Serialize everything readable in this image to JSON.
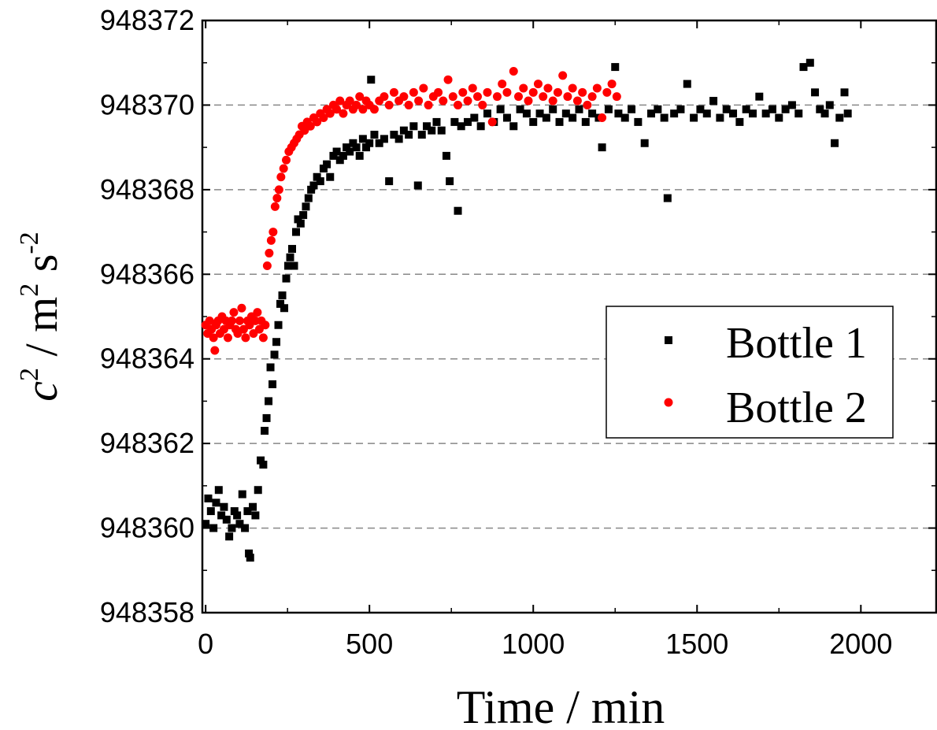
{
  "chart_data": {
    "type": "scatter",
    "xlabel": "Time / min",
    "ylabel": {
      "base": "c",
      "sup": "2",
      "mid": " / m",
      "sup2": "2",
      "mid2": " s",
      "sup3": "-2"
    },
    "xlim": [
      -10,
      2230
    ],
    "ylim": [
      948358,
      948372
    ],
    "xticks": [
      0,
      500,
      1000,
      1500,
      2000
    ],
    "yticks": [
      948358,
      948360,
      948362,
      948364,
      948366,
      948368,
      948370,
      948372
    ],
    "grid": {
      "y": true,
      "x": false,
      "style": "dashed"
    },
    "legend": {
      "placement": "right",
      "entries": [
        "Bottle 1",
        "Bottle 2"
      ]
    },
    "series": [
      {
        "name": "Bottle 1",
        "color": "#000000",
        "marker": "square",
        "points": [
          [
            0,
            948360.1
          ],
          [
            8,
            948360.7
          ],
          [
            16,
            948360.4
          ],
          [
            24,
            948360.0
          ],
          [
            32,
            948360.6
          ],
          [
            40,
            948360.9
          ],
          [
            48,
            948360.3
          ],
          [
            56,
            948360.5
          ],
          [
            64,
            948360.2
          ],
          [
            72,
            948359.8
          ],
          [
            80,
            948360.0
          ],
          [
            88,
            948360.4
          ],
          [
            96,
            948360.3
          ],
          [
            104,
            948360.1
          ],
          [
            112,
            948360.8
          ],
          [
            120,
            948360.0
          ],
          [
            128,
            948360.4
          ],
          [
            132,
            948359.4
          ],
          [
            136,
            948359.3
          ],
          [
            144,
            948360.5
          ],
          [
            152,
            948360.3
          ],
          [
            160,
            948360.9
          ],
          [
            168,
            948361.6
          ],
          [
            176,
            948361.5
          ],
          [
            180,
            948362.3
          ],
          [
            186,
            948362.6
          ],
          [
            192,
            948363.0
          ],
          [
            198,
            948363.8
          ],
          [
            204,
            948363.4
          ],
          [
            210,
            948364.1
          ],
          [
            216,
            948364.4
          ],
          [
            222,
            948364.8
          ],
          [
            228,
            948365.3
          ],
          [
            234,
            948365.5
          ],
          [
            240,
            948365.2
          ],
          [
            246,
            948365.9
          ],
          [
            252,
            948366.2
          ],
          [
            258,
            948366.4
          ],
          [
            264,
            948366.6
          ],
          [
            270,
            948366.2
          ],
          [
            276,
            948367.0
          ],
          [
            282,
            948367.3
          ],
          [
            290,
            948367.2
          ],
          [
            298,
            948367.4
          ],
          [
            306,
            948367.6
          ],
          [
            314,
            948367.8
          ],
          [
            322,
            948368.0
          ],
          [
            330,
            948368.1
          ],
          [
            340,
            948368.3
          ],
          [
            350,
            948368.2
          ],
          [
            360,
            948368.5
          ],
          [
            370,
            948368.6
          ],
          [
            380,
            948368.3
          ],
          [
            390,
            948368.8
          ],
          [
            400,
            948368.9
          ],
          [
            410,
            948368.7
          ],
          [
            420,
            948368.8
          ],
          [
            430,
            948369.0
          ],
          [
            440,
            948368.9
          ],
          [
            450,
            948369.1
          ],
          [
            460,
            948369.0
          ],
          [
            470,
            948368.8
          ],
          [
            480,
            948369.2
          ],
          [
            490,
            948369.0
          ],
          [
            500,
            948369.1
          ],
          [
            505,
            948370.6
          ],
          [
            515,
            948369.3
          ],
          [
            530,
            948369.1
          ],
          [
            545,
            948369.2
          ],
          [
            560,
            948368.2
          ],
          [
            575,
            948369.3
          ],
          [
            590,
            948369.2
          ],
          [
            605,
            948369.4
          ],
          [
            620,
            948369.3
          ],
          [
            635,
            948369.5
          ],
          [
            648,
            948368.1
          ],
          [
            660,
            948369.3
          ],
          [
            675,
            948369.5
          ],
          [
            690,
            948369.4
          ],
          [
            705,
            948369.6
          ],
          [
            720,
            948369.4
          ],
          [
            735,
            948368.8
          ],
          [
            745,
            948368.2
          ],
          [
            760,
            948369.6
          ],
          [
            770,
            948367.5
          ],
          [
            780,
            948369.5
          ],
          [
            800,
            948369.6
          ],
          [
            820,
            948369.7
          ],
          [
            840,
            948369.5
          ],
          [
            860,
            948369.8
          ],
          [
            880,
            948369.6
          ],
          [
            900,
            948369.9
          ],
          [
            920,
            948369.7
          ],
          [
            940,
            948369.5
          ],
          [
            960,
            948369.9
          ],
          [
            980,
            948369.8
          ],
          [
            1000,
            948369.6
          ],
          [
            1020,
            948369.8
          ],
          [
            1040,
            948369.7
          ],
          [
            1060,
            948369.9
          ],
          [
            1080,
            948369.6
          ],
          [
            1100,
            948369.8
          ],
          [
            1120,
            948369.7
          ],
          [
            1140,
            948369.9
          ],
          [
            1160,
            948369.6
          ],
          [
            1180,
            948369.8
          ],
          [
            1200,
            948369.7
          ],
          [
            1210,
            948369.0
          ],
          [
            1230,
            948369.9
          ],
          [
            1250,
            948370.9
          ],
          [
            1260,
            948369.8
          ],
          [
            1280,
            948369.7
          ],
          [
            1300,
            948369.9
          ],
          [
            1320,
            948369.6
          ],
          [
            1340,
            948369.1
          ],
          [
            1360,
            948369.8
          ],
          [
            1380,
            948369.9
          ],
          [
            1400,
            948369.7
          ],
          [
            1410,
            948367.8
          ],
          [
            1430,
            948369.8
          ],
          [
            1450,
            948369.9
          ],
          [
            1470,
            948370.5
          ],
          [
            1490,
            948369.7
          ],
          [
            1510,
            948369.9
          ],
          [
            1530,
            948369.8
          ],
          [
            1550,
            948370.1
          ],
          [
            1570,
            948369.7
          ],
          [
            1590,
            948369.9
          ],
          [
            1610,
            948369.8
          ],
          [
            1630,
            948369.6
          ],
          [
            1650,
            948369.9
          ],
          [
            1670,
            948369.8
          ],
          [
            1690,
            948370.2
          ],
          [
            1710,
            948369.8
          ],
          [
            1730,
            948369.9
          ],
          [
            1750,
            948369.7
          ],
          [
            1770,
            948369.9
          ],
          [
            1790,
            948370.0
          ],
          [
            1810,
            948369.8
          ],
          [
            1825,
            948370.9
          ],
          [
            1845,
            948371.0
          ],
          [
            1860,
            948370.3
          ],
          [
            1875,
            948369.9
          ],
          [
            1890,
            948369.8
          ],
          [
            1905,
            948370.0
          ],
          [
            1920,
            948369.1
          ],
          [
            1935,
            948369.7
          ],
          [
            1950,
            948370.3
          ],
          [
            1960,
            948369.8
          ]
        ]
      },
      {
        "name": "Bottle 2",
        "color": "#ff0000",
        "marker": "circle",
        "points": [
          [
            0,
            948364.8
          ],
          [
            6,
            948364.6
          ],
          [
            12,
            948364.9
          ],
          [
            18,
            948364.7
          ],
          [
            24,
            948364.5
          ],
          [
            28,
            948364.2
          ],
          [
            32,
            948364.8
          ],
          [
            38,
            948364.9
          ],
          [
            44,
            948364.6
          ],
          [
            50,
            948365.0
          ],
          [
            56,
            948364.7
          ],
          [
            62,
            948364.9
          ],
          [
            68,
            948364.5
          ],
          [
            74,
            948364.8
          ],
          [
            80,
            948364.9
          ],
          [
            86,
            948365.1
          ],
          [
            92,
            948364.7
          ],
          [
            98,
            948364.6
          ],
          [
            104,
            948364.9
          ],
          [
            110,
            948365.2
          ],
          [
            116,
            948364.7
          ],
          [
            122,
            948364.5
          ],
          [
            128,
            948364.9
          ],
          [
            134,
            948364.8
          ],
          [
            140,
            948365.0
          ],
          [
            146,
            948364.6
          ],
          [
            152,
            948364.9
          ],
          [
            158,
            948365.1
          ],
          [
            164,
            948364.7
          ],
          [
            170,
            948364.9
          ],
          [
            176,
            948364.5
          ],
          [
            182,
            948364.8
          ],
          [
            188,
            948366.2
          ],
          [
            194,
            948366.5
          ],
          [
            200,
            948366.8
          ],
          [
            206,
            948367.0
          ],
          [
            212,
            948367.6
          ],
          [
            218,
            948367.8
          ],
          [
            224,
            948368.0
          ],
          [
            230,
            948368.3
          ],
          [
            238,
            948368.5
          ],
          [
            246,
            948368.7
          ],
          [
            254,
            948368.9
          ],
          [
            262,
            948369.0
          ],
          [
            270,
            948369.1
          ],
          [
            278,
            948369.2
          ],
          [
            286,
            948369.3
          ],
          [
            294,
            948369.5
          ],
          [
            302,
            948369.4
          ],
          [
            310,
            948369.6
          ],
          [
            320,
            948369.5
          ],
          [
            330,
            948369.7
          ],
          [
            340,
            948369.6
          ],
          [
            350,
            948369.8
          ],
          [
            360,
            948369.7
          ],
          [
            370,
            948369.9
          ],
          [
            380,
            948369.8
          ],
          [
            390,
            948370.0
          ],
          [
            400,
            948369.9
          ],
          [
            410,
            948370.1
          ],
          [
            420,
            948369.8
          ],
          [
            430,
            948370.0
          ],
          [
            440,
            948370.1
          ],
          [
            450,
            948369.9
          ],
          [
            460,
            948370.0
          ],
          [
            470,
            948370.2
          ],
          [
            480,
            948369.9
          ],
          [
            490,
            948370.1
          ],
          [
            500,
            948370.0
          ],
          [
            515,
            948369.9
          ],
          [
            530,
            948370.1
          ],
          [
            545,
            948370.2
          ],
          [
            560,
            948370.0
          ],
          [
            575,
            948370.3
          ],
          [
            590,
            948370.1
          ],
          [
            605,
            948370.2
          ],
          [
            620,
            948370.0
          ],
          [
            635,
            948370.3
          ],
          [
            650,
            948370.1
          ],
          [
            665,
            948370.4
          ],
          [
            680,
            948370.0
          ],
          [
            695,
            948370.2
          ],
          [
            710,
            948370.3
          ],
          [
            725,
            948370.1
          ],
          [
            740,
            948370.6
          ],
          [
            755,
            948370.2
          ],
          [
            770,
            948370.0
          ],
          [
            785,
            948370.3
          ],
          [
            800,
            948370.1
          ],
          [
            815,
            948370.4
          ],
          [
            830,
            948370.2
          ],
          [
            845,
            948370.0
          ],
          [
            860,
            948370.3
          ],
          [
            875,
            948369.6
          ],
          [
            890,
            948370.2
          ],
          [
            905,
            948370.5
          ],
          [
            920,
            948370.3
          ],
          [
            940,
            948370.8
          ],
          [
            955,
            948370.2
          ],
          [
            970,
            948370.4
          ],
          [
            985,
            948370.1
          ],
          [
            1000,
            948370.3
          ],
          [
            1015,
            948370.5
          ],
          [
            1030,
            948370.2
          ],
          [
            1045,
            948370.4
          ],
          [
            1060,
            948370.1
          ],
          [
            1075,
            948370.3
          ],
          [
            1090,
            948370.7
          ],
          [
            1105,
            948370.2
          ],
          [
            1120,
            948370.4
          ],
          [
            1135,
            948370.1
          ],
          [
            1150,
            948370.3
          ],
          [
            1165,
            948370.0
          ],
          [
            1180,
            948370.2
          ],
          [
            1195,
            948370.4
          ],
          [
            1210,
            948369.7
          ],
          [
            1225,
            948370.3
          ],
          [
            1240,
            948370.5
          ],
          [
            1255,
            948370.2
          ]
        ]
      }
    ]
  }
}
